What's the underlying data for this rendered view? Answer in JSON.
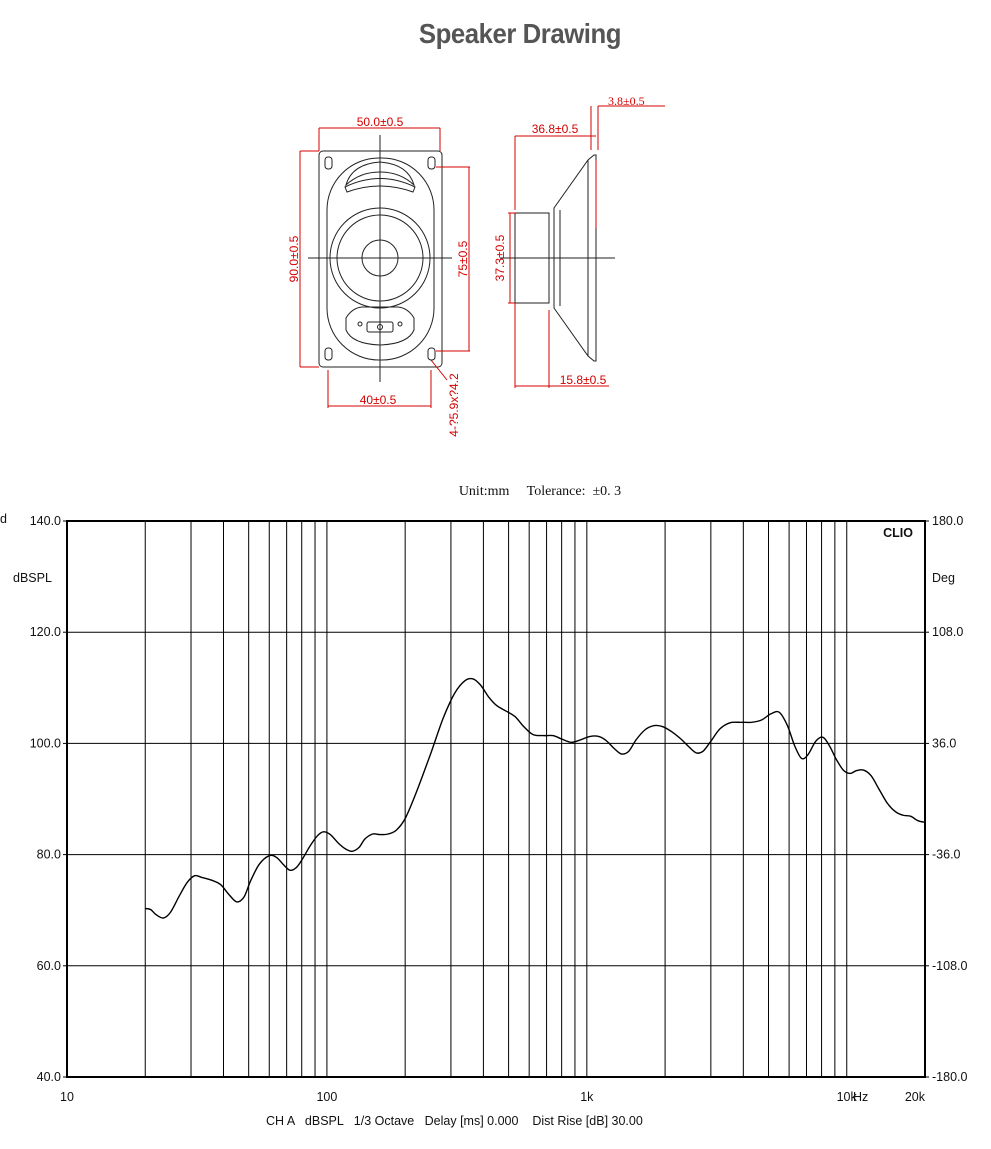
{
  "header": {
    "title": "Speaker Drawing"
  },
  "drawing": {
    "front_dims": {
      "width_top": "50.0±0.5",
      "height_left": "90.0±0.5",
      "height_right": "75±0.5",
      "width_bottom": "40±0.5",
      "holes": "4-?5.9x?4.2"
    },
    "side_dims": {
      "top_small": "3.8±0.5",
      "depth": "36.8±0.5",
      "magnet_dia": "37.3±0.5",
      "bottom": "15.8±0.5"
    },
    "units_label": "Unit:mm",
    "tolerance_label": "Tolerance:",
    "tolerance_value": "±0. 3"
  },
  "chart_data": {
    "type": "line",
    "title": "",
    "brand": "CLIO",
    "left_axis_unit": "dBSPL",
    "right_axis_unit": "Deg",
    "left_axis_stub": "d",
    "x_scale": "log",
    "xlim": [
      10,
      20000
    ],
    "ylim": [
      40,
      140
    ],
    "y2lim": [
      -180,
      180
    ],
    "grid": true,
    "y_ticks": [
      "140.0",
      "120.0",
      "100.0",
      "80.0",
      "60.0",
      "40.0"
    ],
    "y_tick_values": [
      140,
      120,
      100,
      80,
      60,
      40
    ],
    "y2_ticks": [
      "180.0",
      "108.0",
      "36.0",
      "-36.0",
      "-108.0",
      "-180.0"
    ],
    "x_ticks": [
      "10",
      "100",
      "1k",
      "10k",
      "20k"
    ],
    "x_tick_values": [
      10,
      100,
      1000,
      10000,
      20000
    ],
    "x_unit": "Hz",
    "xlabel": "CH A   dBSPL   1/3 Octave   Delay [ms] 0.000    Dist Rise [dB] 30.00",
    "series": [
      {
        "points": [
          [
            20,
            70.3
          ],
          [
            21,
            70.1
          ],
          [
            22,
            69.2
          ],
          [
            23.5,
            68.6
          ],
          [
            25,
            69.6
          ],
          [
            27,
            72.5
          ],
          [
            29,
            75.0
          ],
          [
            31,
            76.2
          ],
          [
            33,
            75.9
          ],
          [
            36,
            75.4
          ],
          [
            39,
            74.6
          ],
          [
            42,
            72.8
          ],
          [
            45,
            71.5
          ],
          [
            48,
            72.4
          ],
          [
            51,
            75.4
          ],
          [
            55,
            78.3
          ],
          [
            60,
            79.8
          ],
          [
            64,
            79.5
          ],
          [
            68,
            78.2
          ],
          [
            72,
            77.2
          ],
          [
            76,
            77.6
          ],
          [
            80,
            79.0
          ],
          [
            86,
            81.5
          ],
          [
            92,
            83.4
          ],
          [
            97,
            84.1
          ],
          [
            103,
            83.6
          ],
          [
            111,
            82.0
          ],
          [
            118,
            81.0
          ],
          [
            125,
            80.6
          ],
          [
            133,
            81.3
          ],
          [
            140,
            82.8
          ],
          [
            150,
            83.7
          ],
          [
            160,
            83.6
          ],
          [
            172,
            83.7
          ],
          [
            185,
            84.4
          ],
          [
            200,
            86.5
          ],
          [
            220,
            91.0
          ],
          [
            250,
            98.0
          ],
          [
            280,
            104.5
          ],
          [
            310,
            109.0
          ],
          [
            340,
            111.3
          ],
          [
            365,
            111.6
          ],
          [
            390,
            110.5
          ],
          [
            420,
            108.3
          ],
          [
            450,
            106.8
          ],
          [
            490,
            105.8
          ],
          [
            530,
            104.8
          ],
          [
            570,
            103.1
          ],
          [
            620,
            101.6
          ],
          [
            680,
            101.4
          ],
          [
            740,
            101.4
          ],
          [
            800,
            100.8
          ],
          [
            870,
            100.2
          ],
          [
            940,
            100.6
          ],
          [
            1020,
            101.2
          ],
          [
            1100,
            101.3
          ],
          [
            1180,
            100.6
          ],
          [
            1280,
            99.0
          ],
          [
            1360,
            98.1
          ],
          [
            1450,
            98.6
          ],
          [
            1550,
            100.7
          ],
          [
            1680,
            102.5
          ],
          [
            1820,
            103.2
          ],
          [
            1960,
            103.0
          ],
          [
            2120,
            102.1
          ],
          [
            2300,
            100.8
          ],
          [
            2480,
            99.3
          ],
          [
            2640,
            98.3
          ],
          [
            2800,
            98.6
          ],
          [
            3000,
            100.4
          ],
          [
            3250,
            102.6
          ],
          [
            3550,
            103.7
          ],
          [
            3900,
            103.8
          ],
          [
            4300,
            103.8
          ],
          [
            4700,
            104.2
          ],
          [
            5100,
            105.3
          ],
          [
            5500,
            105.6
          ],
          [
            5900,
            103.3
          ],
          [
            6300,
            99.6
          ],
          [
            6700,
            97.3
          ],
          [
            7100,
            98.0
          ],
          [
            7600,
            100.4
          ],
          [
            8100,
            101.1
          ],
          [
            8600,
            99.5
          ],
          [
            9100,
            97.2
          ],
          [
            9700,
            95.2
          ],
          [
            10300,
            94.6
          ],
          [
            10900,
            95.1
          ],
          [
            11600,
            95.2
          ],
          [
            12400,
            94.2
          ],
          [
            13300,
            91.8
          ],
          [
            14300,
            89.3
          ],
          [
            15300,
            87.8
          ],
          [
            16400,
            87.1
          ],
          [
            17600,
            86.9
          ],
          [
            18800,
            86.1
          ],
          [
            20000,
            85.8
          ]
        ]
      }
    ]
  }
}
